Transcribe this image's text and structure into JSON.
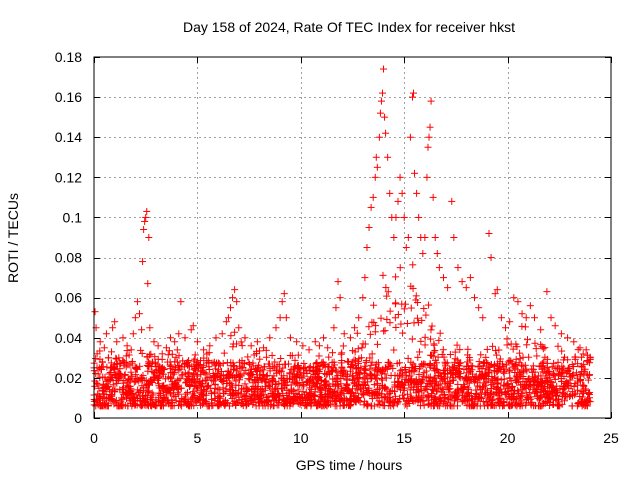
{
  "chart_data": {
    "type": "scatter",
    "title": "Day 158 of 2024, Rate Of TEC Index for receiver hkst",
    "xlabel": "GPS time / hours",
    "ylabel": "ROTI / TECUs",
    "xlim": [
      0,
      25
    ],
    "ylim": [
      0,
      0.18
    ],
    "x_ticks": [
      0,
      5,
      10,
      15,
      20,
      25
    ],
    "x_tick_labels": [
      "0",
      "5",
      "10",
      "15",
      "20",
      "25"
    ],
    "y_ticks": [
      0,
      0.02,
      0.04,
      0.06,
      0.08,
      0.1,
      0.12,
      0.14,
      0.16,
      0.18
    ],
    "y_tick_labels": [
      "0",
      "0.02",
      "0.04",
      "0.06",
      "0.08",
      "0.1",
      "0.12",
      "0.14",
      "0.16",
      "0.18"
    ],
    "grid": true,
    "marker": "plus",
    "color": "#ff0000",
    "series": [
      {
        "name": "ROTI",
        "points": [
          [
            0.0,
            0.025
          ],
          [
            0.05,
            0.053
          ],
          [
            0.1,
            0.045
          ],
          [
            0.15,
            0.032
          ],
          [
            0.2,
            0.022
          ],
          [
            0.3,
            0.038
          ],
          [
            0.4,
            0.028
          ],
          [
            0.5,
            0.035
          ],
          [
            0.6,
            0.042
          ],
          [
            0.7,
            0.03
          ],
          [
            0.8,
            0.025
          ],
          [
            0.9,
            0.045
          ],
          [
            1.0,
            0.048
          ],
          [
            1.1,
            0.038
          ],
          [
            1.2,
            0.03
          ],
          [
            1.4,
            0.04
          ],
          [
            1.6,
            0.036
          ],
          [
            1.8,
            0.034
          ],
          [
            1.9,
            0.042
          ],
          [
            2.0,
            0.05
          ],
          [
            2.1,
            0.058
          ],
          [
            2.2,
            0.052
          ],
          [
            2.3,
            0.044
          ],
          [
            2.35,
            0.078
          ],
          [
            2.4,
            0.094
          ],
          [
            2.45,
            0.098
          ],
          [
            2.5,
            0.1
          ],
          [
            2.55,
            0.103
          ],
          [
            2.6,
            0.067
          ],
          [
            2.65,
            0.09
          ],
          [
            2.7,
            0.045
          ],
          [
            2.9,
            0.038
          ],
          [
            3.1,
            0.036
          ],
          [
            3.3,
            0.032
          ],
          [
            3.5,
            0.035
          ],
          [
            3.7,
            0.04
          ],
          [
            3.9,
            0.038
          ],
          [
            4.1,
            0.042
          ],
          [
            4.2,
            0.058
          ],
          [
            4.4,
            0.04
          ],
          [
            4.7,
            0.044
          ],
          [
            4.8,
            0.046
          ],
          [
            5.0,
            0.038
          ],
          [
            5.3,
            0.034
          ],
          [
            5.6,
            0.036
          ],
          [
            5.9,
            0.04
          ],
          [
            6.2,
            0.042
          ],
          [
            6.4,
            0.048
          ],
          [
            6.5,
            0.05
          ],
          [
            6.6,
            0.055
          ],
          [
            6.7,
            0.06
          ],
          [
            6.8,
            0.064
          ],
          [
            6.9,
            0.058
          ],
          [
            7.0,
            0.045
          ],
          [
            7.3,
            0.04
          ],
          [
            7.6,
            0.036
          ],
          [
            7.9,
            0.038
          ],
          [
            8.2,
            0.035
          ],
          [
            8.5,
            0.04
          ],
          [
            8.8,
            0.045
          ],
          [
            9.0,
            0.05
          ],
          [
            9.1,
            0.058
          ],
          [
            9.2,
            0.062
          ],
          [
            9.3,
            0.05
          ],
          [
            9.5,
            0.04
          ],
          [
            9.8,
            0.038
          ],
          [
            10.1,
            0.036
          ],
          [
            10.4,
            0.034
          ],
          [
            10.7,
            0.038
          ],
          [
            10.9,
            0.036
          ],
          [
            11.1,
            0.04
          ],
          [
            11.3,
            0.035
          ],
          [
            11.6,
            0.045
          ],
          [
            11.7,
            0.055
          ],
          [
            11.8,
            0.068
          ],
          [
            11.9,
            0.06
          ],
          [
            12.1,
            0.042
          ],
          [
            12.4,
            0.04
          ],
          [
            12.6,
            0.045
          ],
          [
            12.8,
            0.05
          ],
          [
            13.0,
            0.06
          ],
          [
            13.1,
            0.07
          ],
          [
            13.2,
            0.085
          ],
          [
            13.3,
            0.095
          ],
          [
            13.4,
            0.105
          ],
          [
            13.5,
            0.11
          ],
          [
            13.6,
            0.12
          ],
          [
            13.65,
            0.13
          ],
          [
            13.7,
            0.125
          ],
          [
            13.8,
            0.14
          ],
          [
            13.85,
            0.152
          ],
          [
            13.9,
            0.158
          ],
          [
            13.95,
            0.162
          ],
          [
            14.0,
            0.174
          ],
          [
            14.05,
            0.15
          ],
          [
            14.1,
            0.142
          ],
          [
            14.2,
            0.13
          ],
          [
            14.3,
            0.112
          ],
          [
            14.4,
            0.1
          ],
          [
            14.5,
            0.09
          ],
          [
            14.6,
            0.1
          ],
          [
            14.7,
            0.108
          ],
          [
            14.8,
            0.12
          ],
          [
            14.9,
            0.112
          ],
          [
            15.0,
            0.1
          ],
          [
            15.1,
            0.085
          ],
          [
            15.2,
            0.09
          ],
          [
            15.3,
            0.14
          ],
          [
            15.4,
            0.16
          ],
          [
            15.45,
            0.162
          ],
          [
            15.5,
            0.122
          ],
          [
            15.6,
            0.112
          ],
          [
            15.7,
            0.1
          ],
          [
            15.8,
            0.09
          ],
          [
            15.9,
            0.082
          ],
          [
            16.0,
            0.09
          ],
          [
            16.1,
            0.12
          ],
          [
            16.15,
            0.135
          ],
          [
            16.2,
            0.14
          ],
          [
            16.25,
            0.145
          ],
          [
            16.3,
            0.158
          ],
          [
            16.4,
            0.11
          ],
          [
            16.5,
            0.09
          ],
          [
            16.6,
            0.082
          ],
          [
            16.7,
            0.075
          ],
          [
            16.9,
            0.07
          ],
          [
            17.1,
            0.065
          ],
          [
            17.3,
            0.108
          ],
          [
            17.4,
            0.09
          ],
          [
            17.6,
            0.075
          ],
          [
            17.8,
            0.068
          ],
          [
            18.0,
            0.065
          ],
          [
            18.2,
            0.07
          ],
          [
            18.4,
            0.06
          ],
          [
            18.6,
            0.055
          ],
          [
            18.8,
            0.05
          ],
          [
            19.1,
            0.092
          ],
          [
            19.2,
            0.08
          ],
          [
            19.4,
            0.062
          ],
          [
            19.5,
            0.064
          ],
          [
            19.7,
            0.05
          ],
          [
            19.9,
            0.045
          ],
          [
            20.1,
            0.048
          ],
          [
            20.3,
            0.06
          ],
          [
            20.5,
            0.058
          ],
          [
            20.7,
            0.052
          ],
          [
            20.9,
            0.05
          ],
          [
            21.1,
            0.056
          ],
          [
            21.3,
            0.05
          ],
          [
            21.6,
            0.044
          ],
          [
            21.9,
            0.063
          ],
          [
            22.1,
            0.05
          ],
          [
            22.3,
            0.046
          ],
          [
            22.6,
            0.042
          ],
          [
            22.9,
            0.04
          ],
          [
            23.2,
            0.038
          ],
          [
            23.5,
            0.035
          ],
          [
            23.8,
            0.034
          ],
          [
            24.0,
            0.03
          ]
        ]
      }
    ]
  }
}
